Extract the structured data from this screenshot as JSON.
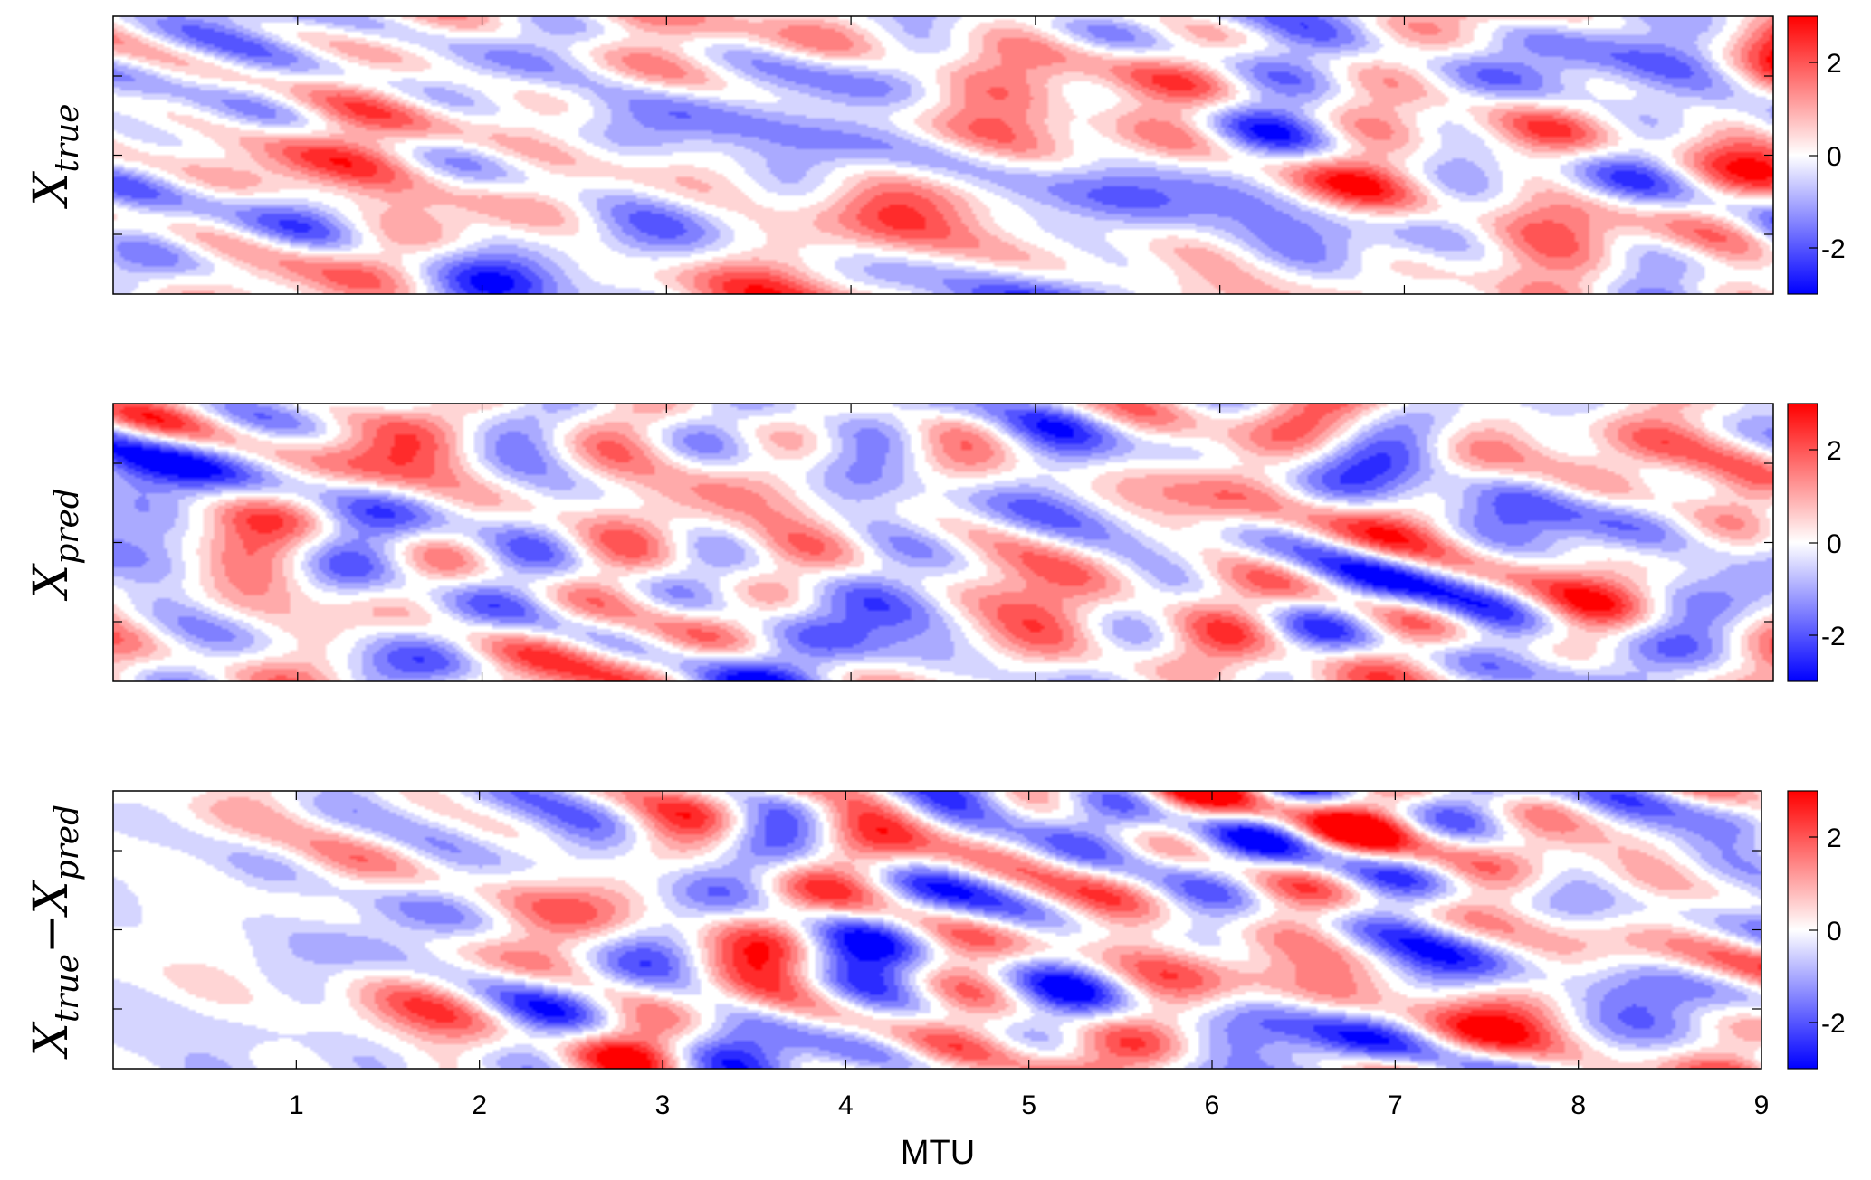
{
  "chart_data": [
    {
      "type": "heatmap",
      "panel": "top",
      "ylabel": "X_true",
      "ylabel_main": "X",
      "ylabel_sub": "true",
      "xlim": [
        0,
        9
      ],
      "ylim": [
        0,
        1
      ],
      "colorbar": {
        "range": [
          -3,
          3
        ],
        "ticks": [
          2,
          0,
          -2
        ],
        "tick_labels": [
          "2",
          "0",
          "-2"
        ],
        "low_color": "#0000ff",
        "mid_color": "#ffffff",
        "high_color": "#ff0000"
      },
      "seed": 11
    },
    {
      "type": "heatmap",
      "panel": "middle",
      "ylabel": "X_pred",
      "ylabel_main": "X",
      "ylabel_sub": "pred",
      "xlim": [
        0,
        9
      ],
      "ylim": [
        0,
        1
      ],
      "colorbar": {
        "range": [
          -3,
          3
        ],
        "ticks": [
          2,
          0,
          -2
        ],
        "tick_labels": [
          "2",
          "0",
          "-2"
        ],
        "low_color": "#0000ff",
        "mid_color": "#ffffff",
        "high_color": "#ff0000"
      },
      "seed": 27
    },
    {
      "type": "heatmap",
      "panel": "bottom",
      "ylabel": "X_true − X_pred",
      "ylabel_main1": "X",
      "ylabel_sub1": "true",
      "ylabel_op": "−",
      "ylabel_main2": "X",
      "ylabel_sub2": "pred",
      "xlabel": "MTU",
      "xlim": [
        0,
        9
      ],
      "x_ticks": [
        1,
        2,
        3,
        4,
        5,
        6,
        7,
        8,
        9
      ],
      "x_tick_labels": [
        "1",
        "2",
        "3",
        "4",
        "5",
        "6",
        "7",
        "8",
        "9"
      ],
      "ylim": [
        0,
        1
      ],
      "colorbar": {
        "range": [
          -3,
          3
        ],
        "ticks": [
          2,
          0,
          -2
        ],
        "tick_labels": [
          "2",
          "0",
          "-2"
        ],
        "low_color": "#0000ff",
        "mid_color": "#ffffff",
        "high_color": "#ff0000"
      },
      "seed": 43
    }
  ],
  "colors": {
    "negative": "#0000ff",
    "zero": "#ffffff",
    "positive": "#ff0000",
    "axis": "#000000"
  }
}
